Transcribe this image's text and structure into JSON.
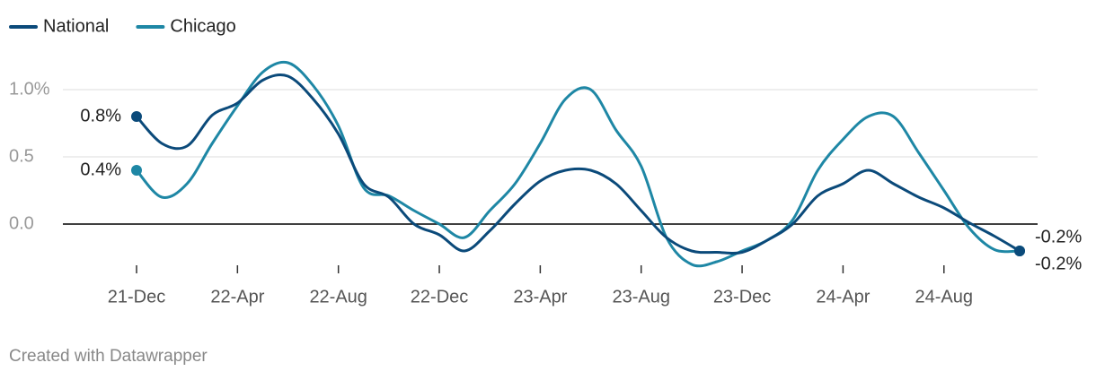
{
  "chart_data": {
    "type": "line",
    "categories": [
      "21-Dec",
      null,
      null,
      null,
      "22-Apr",
      null,
      null,
      null,
      "22-Aug",
      null,
      null,
      null,
      "22-Dec",
      null,
      null,
      null,
      "23-Apr",
      null,
      null,
      null,
      "23-Aug",
      null,
      null,
      null,
      "23-Dec",
      null,
      null,
      null,
      "24-Apr",
      null,
      null,
      null,
      "24-Aug",
      null,
      null,
      null
    ],
    "series": [
      {
        "name": "National",
        "color": "#0b4a7a",
        "values": [
          0.8,
          0.6,
          0.58,
          0.81,
          0.9,
          1.07,
          1.1,
          0.93,
          0.67,
          0.3,
          0.2,
          0.0,
          -0.08,
          -0.2,
          -0.05,
          0.15,
          0.32,
          0.4,
          0.4,
          0.3,
          0.1,
          -0.1,
          -0.2,
          -0.21,
          -0.21,
          -0.12,
          0.0,
          0.21,
          0.3,
          0.4,
          0.3,
          0.2,
          0.12,
          0.01,
          -0.09,
          -0.2
        ],
        "value_labels": [
          "0.8%",
          null,
          null,
          null,
          null,
          null,
          null,
          null,
          null,
          null,
          null,
          null,
          null,
          null,
          null,
          null,
          null,
          null,
          null,
          null,
          null,
          null,
          null,
          null,
          null,
          null,
          null,
          null,
          null,
          null,
          null,
          null,
          null,
          null,
          null,
          "-0.2%"
        ]
      },
      {
        "name": "Chicago",
        "color": "#1e87a5",
        "values": [
          0.4,
          0.2,
          0.3,
          0.6,
          0.88,
          1.13,
          1.2,
          1.03,
          0.73,
          0.27,
          0.21,
          0.1,
          0.0,
          -0.1,
          0.1,
          0.3,
          0.6,
          0.93,
          1.0,
          0.7,
          0.43,
          -0.1,
          -0.3,
          -0.28,
          -0.2,
          -0.12,
          0.03,
          0.4,
          0.63,
          0.8,
          0.8,
          0.53,
          0.25,
          -0.03,
          -0.19,
          -0.2
        ],
        "value_labels": [
          "0.4%",
          null,
          null,
          null,
          null,
          null,
          null,
          null,
          null,
          null,
          null,
          null,
          null,
          null,
          null,
          null,
          null,
          null,
          null,
          null,
          null,
          null,
          null,
          null,
          null,
          null,
          null,
          null,
          null,
          null,
          null,
          null,
          null,
          null,
          null,
          "-0.2%"
        ]
      }
    ],
    "ylim": [
      -0.35,
      1.2
    ],
    "yticks": [
      {
        "value": 0,
        "label": "0.0"
      },
      0.5,
      {
        "value": 1,
        "label": "1.0%"
      }
    ],
    "grid": true,
    "legend": "top-left",
    "credit": "Created with Datawrapper"
  }
}
